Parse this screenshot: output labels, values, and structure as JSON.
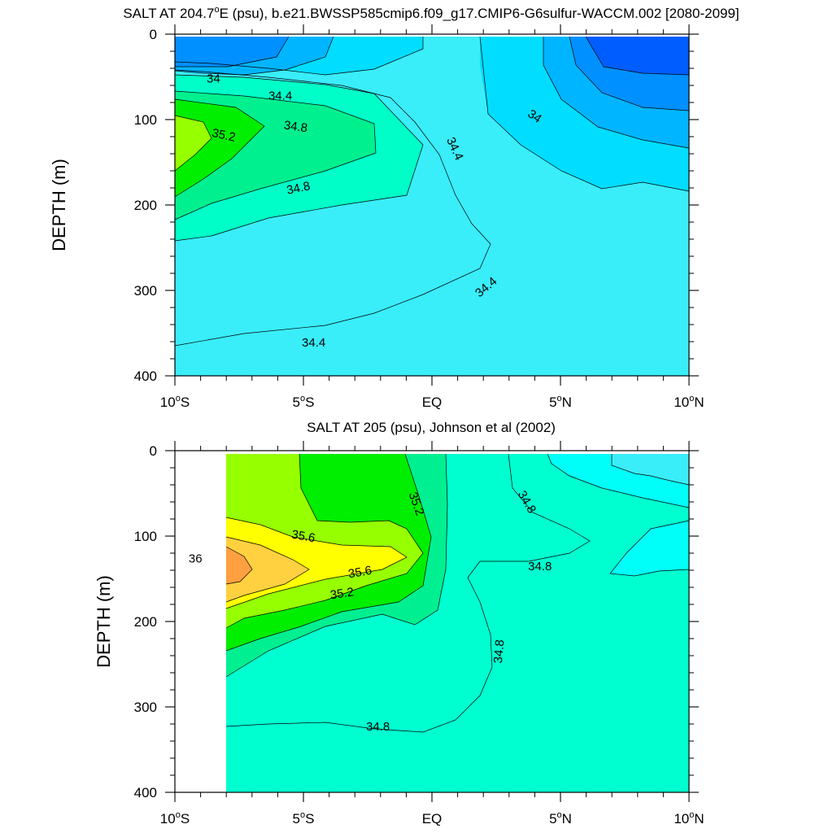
{
  "chart_data": [
    {
      "type": "contour",
      "title_prefix": "SALT AT 204.7",
      "title_suffix": "E (psu), b.e21.BWSSP585cmip6.f09_g17.CMIP6-G6sulfur-WACCM.002 [2080-2099]",
      "degree_symbol": "o",
      "ylabel": "DEPTH (m)",
      "xlim": [
        -10,
        10
      ],
      "ylim": [
        0,
        400
      ],
      "y_reversed": true,
      "x_ticks": [
        {
          "v": -10,
          "base": "10",
          "sup": "o",
          "hemi": "S"
        },
        {
          "v": -5,
          "base": "5",
          "sup": "o",
          "hemi": "S"
        },
        {
          "v": 0,
          "base": "EQ",
          "sup": "",
          "hemi": ""
        },
        {
          "v": 5,
          "base": "5",
          "sup": "o",
          "hemi": "N"
        },
        {
          "v": 10,
          "base": "10",
          "sup": "o",
          "hemi": "N"
        }
      ],
      "y_ticks": [
        "0",
        "100",
        "200",
        "300",
        "400"
      ],
      "contour_labels": [
        {
          "text": "34",
          "x": -8.5,
          "y": 52,
          "rot": 0
        },
        {
          "text": "34.4",
          "x": -5.9,
          "y": 72,
          "rot": 0
        },
        {
          "text": "34.8",
          "x": -5.3,
          "y": 108,
          "rot": 8
        },
        {
          "text": "35.2",
          "x": -8.1,
          "y": 118,
          "rot": 12
        },
        {
          "text": "34.8",
          "x": -5.2,
          "y": 180,
          "rot": -12
        },
        {
          "text": "34.4",
          "x": 0.9,
          "y": 134,
          "rot": 65
        },
        {
          "text": "34",
          "x": 4.0,
          "y": 96,
          "rot": 35
        },
        {
          "text": "34.4",
          "x": 2.1,
          "y": 296,
          "rot": -40
        },
        {
          "text": "34.4",
          "x": -4.6,
          "y": 361,
          "rot": 0
        }
      ]
    },
    {
      "type": "contour",
      "title": "SALT AT 205 (psu), Johnson et al (2002)",
      "ylabel": "DEPTH (m)",
      "xlim": [
        -10,
        10
      ],
      "ylim": [
        0,
        400
      ],
      "y_reversed": true,
      "x_ticks": [
        {
          "v": -10,
          "base": "10",
          "sup": "o",
          "hemi": "S"
        },
        {
          "v": -5,
          "base": "5",
          "sup": "o",
          "hemi": "S"
        },
        {
          "v": 0,
          "base": "EQ",
          "sup": "",
          "hemi": ""
        },
        {
          "v": 5,
          "base": "5",
          "sup": "o",
          "hemi": "N"
        },
        {
          "v": 10,
          "base": "10",
          "sup": "o",
          "hemi": "N"
        }
      ],
      "y_ticks": [
        "0",
        "100",
        "200",
        "300",
        "400"
      ],
      "contour_labels": [
        {
          "text": "35.2",
          "x": -0.6,
          "y": 62,
          "rot": 70
        },
        {
          "text": "34.8",
          "x": 3.7,
          "y": 60,
          "rot": 60
        },
        {
          "text": "35.6",
          "x": -5.0,
          "y": 100,
          "rot": 10
        },
        {
          "text": "36",
          "x": -9.2,
          "y": 126,
          "rot": 0
        },
        {
          "text": "35.6",
          "x": -2.8,
          "y": 142,
          "rot": -10
        },
        {
          "text": "35.2",
          "x": -3.5,
          "y": 167,
          "rot": -8
        },
        {
          "text": "34.8",
          "x": 4.2,
          "y": 135,
          "rot": 0
        },
        {
          "text": "34.8",
          "x": 2.6,
          "y": 235,
          "rot": -85
        },
        {
          "text": "34.8",
          "x": -2.1,
          "y": 323,
          "rot": 0
        }
      ]
    }
  ]
}
